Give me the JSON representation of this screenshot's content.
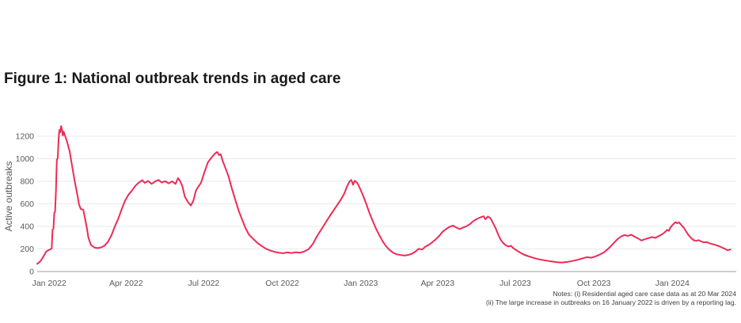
{
  "figure": {
    "title": "Figure 1: National outbreak trends in aged care"
  },
  "notes": {
    "lines": [
      "Notes: (i) Residential aged care case data as at 20 Mar 2024",
      "(ii) The large increase in outbreaks on 16 January 2022 is driven by a reporting lag."
    ]
  },
  "colors": {
    "line": "#ee2a55",
    "grid": "#e9e9e9",
    "axis": "#999999",
    "tick_text": "#595959",
    "title_text": "#191919",
    "notes_text": "#3d3d3d"
  },
  "chart_data": {
    "type": "line",
    "title": "Figure 1: National outbreak trends in aged care",
    "xlabel": "",
    "ylabel": "Active outbreaks",
    "ylim": [
      0,
      1300
    ],
    "y_ticks": [
      0,
      200,
      400,
      600,
      800,
      1000,
      1200
    ],
    "grid": "horizontal-only",
    "legend": "none",
    "x_domain": [
      "2021-12-29",
      "2024-03-27"
    ],
    "x_ticks": [
      {
        "date": "2022-01-01",
        "label": "Jan 2022"
      },
      {
        "date": "2022-04-01",
        "label": "Apr 2022"
      },
      {
        "date": "2022-07-01",
        "label": "Jul 2022"
      },
      {
        "date": "2022-10-01",
        "label": "Oct 2022"
      },
      {
        "date": "2023-01-01",
        "label": "Jan 2023"
      },
      {
        "date": "2023-04-01",
        "label": "Apr 2023"
      },
      {
        "date": "2023-07-01",
        "label": "Jul 2023"
      },
      {
        "date": "2023-10-01",
        "label": "Oct 2023"
      },
      {
        "date": "2024-01-01",
        "label": "Jan 2024"
      }
    ],
    "series": [
      {
        "name": "Active outbreaks",
        "points": [
          [
            "2021-12-29",
            68
          ],
          [
            "2021-12-31",
            80
          ],
          [
            "2022-01-01",
            85
          ],
          [
            "2022-01-03",
            105
          ],
          [
            "2022-01-05",
            130
          ],
          [
            "2022-01-07",
            155
          ],
          [
            "2022-01-08",
            172
          ],
          [
            "2022-01-10",
            185
          ],
          [
            "2022-01-12",
            192
          ],
          [
            "2022-01-14",
            200
          ],
          [
            "2022-01-15",
            205
          ],
          [
            "2022-01-16",
            370
          ],
          [
            "2022-01-17",
            380
          ],
          [
            "2022-01-18",
            520
          ],
          [
            "2022-01-19",
            530
          ],
          [
            "2022-01-20",
            720
          ],
          [
            "2022-01-21",
            990
          ],
          [
            "2022-01-22",
            1005
          ],
          [
            "2022-01-23",
            1170
          ],
          [
            "2022-01-24",
            1255
          ],
          [
            "2022-01-25",
            1235
          ],
          [
            "2022-01-26",
            1290
          ],
          [
            "2022-01-27",
            1260
          ],
          [
            "2022-01-28",
            1205
          ],
          [
            "2022-01-29",
            1240
          ],
          [
            "2022-01-31",
            1195
          ],
          [
            "2022-02-02",
            1150
          ],
          [
            "2022-02-05",
            1065
          ],
          [
            "2022-02-08",
            930
          ],
          [
            "2022-02-11",
            800
          ],
          [
            "2022-02-14",
            680
          ],
          [
            "2022-02-16",
            595
          ],
          [
            "2022-02-18",
            555
          ],
          [
            "2022-02-21",
            548
          ],
          [
            "2022-02-23",
            470
          ],
          [
            "2022-02-25",
            395
          ],
          [
            "2022-02-27",
            300
          ],
          [
            "2022-03-02",
            235
          ],
          [
            "2022-03-06",
            213
          ],
          [
            "2022-03-10",
            208
          ],
          [
            "2022-03-14",
            214
          ],
          [
            "2022-03-18",
            230
          ],
          [
            "2022-03-22",
            265
          ],
          [
            "2022-03-26",
            322
          ],
          [
            "2022-03-30",
            400
          ],
          [
            "2022-04-03",
            468
          ],
          [
            "2022-04-07",
            552
          ],
          [
            "2022-04-11",
            628
          ],
          [
            "2022-04-15",
            682
          ],
          [
            "2022-04-19",
            718
          ],
          [
            "2022-04-23",
            760
          ],
          [
            "2022-04-27",
            788
          ],
          [
            "2022-05-01",
            810
          ],
          [
            "2022-05-04",
            786
          ],
          [
            "2022-05-08",
            803
          ],
          [
            "2022-05-12",
            777
          ],
          [
            "2022-05-16",
            798
          ],
          [
            "2022-05-20",
            812
          ],
          [
            "2022-05-24",
            789
          ],
          [
            "2022-05-28",
            801
          ],
          [
            "2022-06-01",
            781
          ],
          [
            "2022-06-05",
            799
          ],
          [
            "2022-06-09",
            777
          ],
          [
            "2022-06-12",
            828
          ],
          [
            "2022-06-14",
            806
          ],
          [
            "2022-06-17",
            758
          ],
          [
            "2022-06-20",
            663
          ],
          [
            "2022-06-24",
            612
          ],
          [
            "2022-06-27",
            585
          ],
          [
            "2022-06-30",
            628
          ],
          [
            "2022-07-03",
            718
          ],
          [
            "2022-07-06",
            755
          ],
          [
            "2022-07-09",
            788
          ],
          [
            "2022-07-13",
            882
          ],
          [
            "2022-07-17",
            968
          ],
          [
            "2022-07-21",
            1008
          ],
          [
            "2022-07-25",
            1045
          ],
          [
            "2022-07-28",
            1060
          ],
          [
            "2022-07-30",
            1032
          ],
          [
            "2022-08-01",
            1040
          ],
          [
            "2022-08-03",
            986
          ],
          [
            "2022-08-06",
            928
          ],
          [
            "2022-08-10",
            848
          ],
          [
            "2022-08-14",
            738
          ],
          [
            "2022-08-18",
            638
          ],
          [
            "2022-08-22",
            542
          ],
          [
            "2022-08-26",
            460
          ],
          [
            "2022-08-30",
            386
          ],
          [
            "2022-09-03",
            328
          ],
          [
            "2022-09-08",
            290
          ],
          [
            "2022-09-13",
            253
          ],
          [
            "2022-09-18",
            226
          ],
          [
            "2022-09-23",
            202
          ],
          [
            "2022-09-28",
            186
          ],
          [
            "2022-10-03",
            175
          ],
          [
            "2022-10-08",
            167
          ],
          [
            "2022-10-13",
            162
          ],
          [
            "2022-10-18",
            170
          ],
          [
            "2022-10-23",
            164
          ],
          [
            "2022-10-28",
            171
          ],
          [
            "2022-11-02",
            167
          ],
          [
            "2022-11-07",
            178
          ],
          [
            "2022-11-12",
            198
          ],
          [
            "2022-11-17",
            245
          ],
          [
            "2022-11-22",
            315
          ],
          [
            "2022-11-27",
            375
          ],
          [
            "2022-12-02",
            435
          ],
          [
            "2022-12-07",
            495
          ],
          [
            "2022-12-12",
            550
          ],
          [
            "2022-12-16",
            595
          ],
          [
            "2022-12-20",
            640
          ],
          [
            "2022-12-24",
            695
          ],
          [
            "2022-12-27",
            755
          ],
          [
            "2022-12-30",
            800
          ],
          [
            "2023-01-01",
            812
          ],
          [
            "2023-01-03",
            770
          ],
          [
            "2023-01-05",
            805
          ],
          [
            "2023-01-08",
            786
          ],
          [
            "2023-01-11",
            740
          ],
          [
            "2023-01-14",
            688
          ],
          [
            "2023-01-18",
            610
          ],
          [
            "2023-01-22",
            525
          ],
          [
            "2023-01-26",
            450
          ],
          [
            "2023-01-30",
            380
          ],
          [
            "2023-02-03",
            320
          ],
          [
            "2023-02-07",
            265
          ],
          [
            "2023-02-11",
            222
          ],
          [
            "2023-02-15",
            190
          ],
          [
            "2023-02-19",
            167
          ],
          [
            "2023-02-23",
            153
          ],
          [
            "2023-02-28",
            146
          ],
          [
            "2023-03-05",
            142
          ],
          [
            "2023-03-09",
            148
          ],
          [
            "2023-03-13",
            158
          ],
          [
            "2023-03-17",
            176
          ],
          [
            "2023-03-21",
            202
          ],
          [
            "2023-03-25",
            195
          ],
          [
            "2023-03-29",
            222
          ],
          [
            "2023-04-02",
            238
          ],
          [
            "2023-04-06",
            260
          ],
          [
            "2023-04-10",
            286
          ],
          [
            "2023-04-14",
            316
          ],
          [
            "2023-04-18",
            352
          ],
          [
            "2023-04-22",
            376
          ],
          [
            "2023-04-26",
            396
          ],
          [
            "2023-04-30",
            408
          ],
          [
            "2023-05-04",
            390
          ],
          [
            "2023-05-08",
            376
          ],
          [
            "2023-05-12",
            390
          ],
          [
            "2023-05-16",
            402
          ],
          [
            "2023-05-20",
            420
          ],
          [
            "2023-05-24",
            447
          ],
          [
            "2023-05-28",
            466
          ],
          [
            "2023-06-01",
            480
          ],
          [
            "2023-06-05",
            490
          ],
          [
            "2023-06-07",
            464
          ],
          [
            "2023-06-10",
            488
          ],
          [
            "2023-06-13",
            472
          ],
          [
            "2023-06-16",
            430
          ],
          [
            "2023-06-19",
            385
          ],
          [
            "2023-06-22",
            330
          ],
          [
            "2023-06-25",
            282
          ],
          [
            "2023-06-28",
            252
          ],
          [
            "2023-07-01",
            232
          ],
          [
            "2023-07-04",
            222
          ],
          [
            "2023-07-07",
            228
          ],
          [
            "2023-07-10",
            206
          ],
          [
            "2023-07-14",
            186
          ],
          [
            "2023-07-18",
            167
          ],
          [
            "2023-07-22",
            151
          ],
          [
            "2023-07-27",
            137
          ],
          [
            "2023-08-01",
            125
          ],
          [
            "2023-08-06",
            114
          ],
          [
            "2023-08-12",
            104
          ],
          [
            "2023-08-18",
            96
          ],
          [
            "2023-08-24",
            89
          ],
          [
            "2023-08-30",
            83
          ],
          [
            "2023-09-05",
            80
          ],
          [
            "2023-09-11",
            85
          ],
          [
            "2023-09-17",
            93
          ],
          [
            "2023-09-23",
            104
          ],
          [
            "2023-09-29",
            117
          ],
          [
            "2023-10-04",
            127
          ],
          [
            "2023-10-09",
            123
          ],
          [
            "2023-10-14",
            134
          ],
          [
            "2023-10-19",
            150
          ],
          [
            "2023-10-24",
            170
          ],
          [
            "2023-10-28",
            196
          ],
          [
            "2023-11-01",
            224
          ],
          [
            "2023-11-05",
            256
          ],
          [
            "2023-11-09",
            288
          ],
          [
            "2023-11-13",
            310
          ],
          [
            "2023-11-17",
            324
          ],
          [
            "2023-11-21",
            316
          ],
          [
            "2023-11-25",
            327
          ],
          [
            "2023-11-29",
            308
          ],
          [
            "2023-12-03",
            293
          ],
          [
            "2023-12-07",
            275
          ],
          [
            "2023-12-11",
            286
          ],
          [
            "2023-12-15",
            296
          ],
          [
            "2023-12-19",
            306
          ],
          [
            "2023-12-23",
            298
          ],
          [
            "2023-12-27",
            314
          ],
          [
            "2023-12-31",
            330
          ],
          [
            "2024-01-03",
            346
          ],
          [
            "2024-01-06",
            370
          ],
          [
            "2024-01-08",
            360
          ],
          [
            "2024-01-10",
            392
          ],
          [
            "2024-01-12",
            410
          ],
          [
            "2024-01-14",
            426
          ],
          [
            "2024-01-16",
            438
          ],
          [
            "2024-01-18",
            428
          ],
          [
            "2024-01-20",
            436
          ],
          [
            "2024-01-22",
            418
          ],
          [
            "2024-01-25",
            394
          ],
          [
            "2024-01-28",
            358
          ],
          [
            "2024-01-31",
            324
          ],
          [
            "2024-02-03",
            298
          ],
          [
            "2024-02-06",
            278
          ],
          [
            "2024-02-09",
            272
          ],
          [
            "2024-02-12",
            278
          ],
          [
            "2024-02-15",
            267
          ],
          [
            "2024-02-18",
            258
          ],
          [
            "2024-02-21",
            262
          ],
          [
            "2024-02-24",
            252
          ],
          [
            "2024-02-27",
            245
          ],
          [
            "2024-03-01",
            240
          ],
          [
            "2024-03-04",
            232
          ],
          [
            "2024-03-07",
            224
          ],
          [
            "2024-03-10",
            214
          ],
          [
            "2024-03-13",
            204
          ],
          [
            "2024-03-15",
            196
          ],
          [
            "2024-03-17",
            188
          ],
          [
            "2024-03-19",
            194
          ],
          [
            "2024-03-20",
            196
          ]
        ]
      }
    ]
  }
}
